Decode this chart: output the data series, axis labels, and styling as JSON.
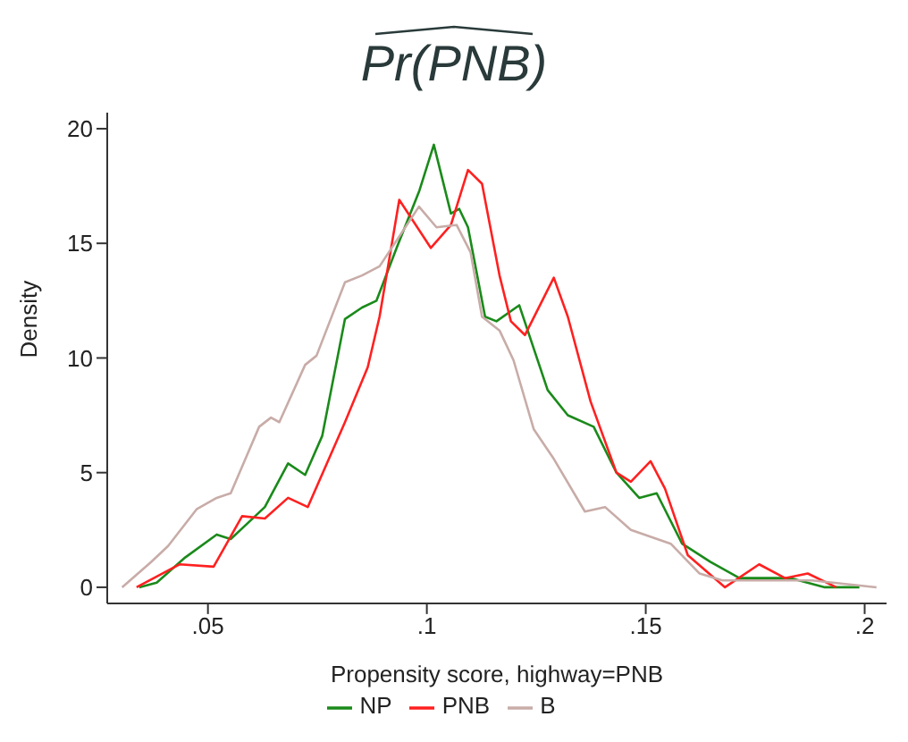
{
  "chart_data": {
    "type": "line",
    "title": "Pr(PNB)",
    "xlabel": "Propensity score, highway=PNB",
    "ylabel": "Density",
    "xlim": [
      0.027,
      0.205
    ],
    "ylim": [
      -0.7,
      20.7
    ],
    "xticks": [
      {
        "value": 0.05,
        "label": ".05"
      },
      {
        "value": 0.1,
        "label": ".1"
      },
      {
        "value": 0.15,
        "label": ".15"
      },
      {
        "value": 0.2,
        "label": ".2"
      }
    ],
    "yticks": [
      0,
      5,
      10,
      15,
      20
    ],
    "grid": false,
    "legend": "bottom",
    "marker": "none",
    "line_style": "solid",
    "series": [
      {
        "name": "NP",
        "color": "#1a8a1a",
        "x": [
          0.0343,
          0.0383,
          0.0448,
          0.052,
          0.0552,
          0.0591,
          0.063,
          0.0683,
          0.0722,
          0.0761,
          0.0813,
          0.0852,
          0.0885,
          0.0931,
          0.0983,
          0.1016,
          0.1055,
          0.1074,
          0.1094,
          0.1133,
          0.1159,
          0.1211,
          0.1276,
          0.1322,
          0.1381,
          0.1433,
          0.1485,
          0.1525,
          0.1583,
          0.1648,
          0.1714,
          0.1831,
          0.1909,
          0.1988
        ],
        "values": [
          0,
          0.2,
          1.3,
          2.3,
          2.1,
          2.8,
          3.5,
          5.4,
          4.9,
          6.6,
          11.7,
          12.2,
          12.5,
          14.8,
          17.3,
          19.3,
          16.3,
          16.5,
          15.7,
          11.8,
          11.6,
          12.3,
          8.6,
          7.5,
          7.0,
          5.0,
          3.9,
          4.1,
          1.9,
          1.1,
          0.4,
          0.4,
          0.0,
          0
        ]
      },
      {
        "name": "PNB",
        "color": "#ff2020",
        "x": [
          0.0337,
          0.0435,
          0.0513,
          0.0578,
          0.063,
          0.0683,
          0.0728,
          0.0813,
          0.0865,
          0.0892,
          0.0937,
          0.1009,
          0.1055,
          0.1094,
          0.1126,
          0.1166,
          0.1192,
          0.1224,
          0.129,
          0.1322,
          0.1374,
          0.1433,
          0.1466,
          0.1511,
          0.1544,
          0.1596,
          0.1681,
          0.1759,
          0.1818,
          0.187,
          0.1935
        ],
        "values": [
          0,
          1.0,
          0.9,
          3.1,
          3.0,
          3.9,
          3.5,
          7.2,
          9.6,
          11.8,
          16.9,
          14.8,
          15.8,
          18.2,
          17.6,
          13.6,
          11.6,
          11.0,
          13.5,
          11.8,
          8.1,
          5.0,
          4.6,
          5.5,
          4.3,
          1.4,
          0,
          1.0,
          0.4,
          0.6,
          0
        ]
      },
      {
        "name": "B",
        "color": "#c8aca8",
        "x": [
          0.0304,
          0.037,
          0.0409,
          0.0474,
          0.052,
          0.0552,
          0.0617,
          0.0644,
          0.0663,
          0.0722,
          0.0748,
          0.0813,
          0.0852,
          0.0892,
          0.0982,
          0.1022,
          0.1068,
          0.11,
          0.1126,
          0.1166,
          0.1198,
          0.1244,
          0.129,
          0.1361,
          0.1407,
          0.1466,
          0.1557,
          0.1623,
          0.1675,
          0.188,
          0.2027
        ],
        "values": [
          0,
          1.1,
          1.8,
          3.4,
          3.9,
          4.1,
          7.0,
          7.4,
          7.2,
          9.7,
          10.1,
          13.3,
          13.6,
          14.0,
          16.6,
          15.7,
          15.8,
          14.6,
          11.8,
          11.2,
          9.9,
          6.9,
          5.6,
          3.3,
          3.5,
          2.5,
          1.9,
          0.6,
          0.3,
          0.3,
          0
        ]
      }
    ]
  }
}
